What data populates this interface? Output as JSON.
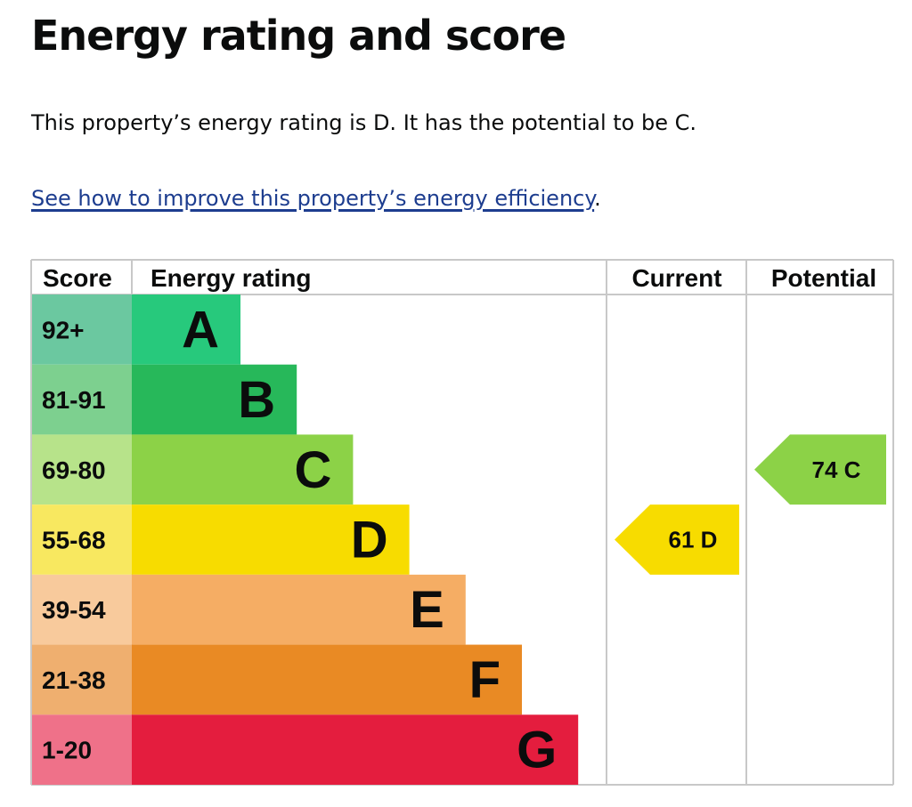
{
  "page": {
    "title": "Energy rating and score",
    "summary": "This property’s energy rating is D. It has the potential to be C.",
    "link_text": "See how to improve this property’s energy efficiency",
    "link_suffix": "."
  },
  "chart_data": {
    "type": "bar",
    "headers": {
      "score": "Score",
      "rating": "Energy rating",
      "current": "Current",
      "potential": "Potential"
    },
    "bands": [
      {
        "letter": "A",
        "score_range": "92+",
        "color": "#27c97c",
        "score_color": "#6bc8a0"
      },
      {
        "letter": "B",
        "score_range": "81-91",
        "color": "#27b85a",
        "score_color": "#7dd08f"
      },
      {
        "letter": "C",
        "score_range": "69-80",
        "color": "#8cd247",
        "score_color": "#b7e38a"
      },
      {
        "letter": "D",
        "score_range": "55-68",
        "color": "#f7dc00",
        "score_color": "#f8e860"
      },
      {
        "letter": "E",
        "score_range": "39-54",
        "color": "#f5ad64",
        "score_color": "#f8ca9c"
      },
      {
        "letter": "F",
        "score_range": "21-38",
        "color": "#e98a24",
        "score_color": "#efaf6f"
      },
      {
        "letter": "G",
        "score_range": "1-20",
        "color": "#e41d3e",
        "score_color": "#ef7189"
      }
    ],
    "current": {
      "score": 61,
      "rating": "D",
      "label": "61 D"
    },
    "potential": {
      "score": 74,
      "rating": "C",
      "label": "74 C"
    }
  }
}
